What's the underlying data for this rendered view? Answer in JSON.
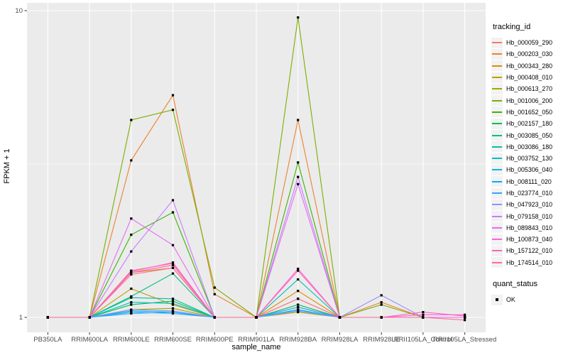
{
  "chart_data": {
    "type": "line",
    "title": "",
    "xlabel": "sample_name",
    "ylabel": "FPKM + 1",
    "yscale": "log10",
    "ylim": [
      0.89,
      10.6
    ],
    "yticks": [
      {
        "label": "1",
        "value": 1
      },
      {
        "label": "10",
        "value": 10
      }
    ],
    "minor_gridlines": [
      3.162
    ],
    "grid": "on",
    "panel_bg": "#EBEBEB",
    "gridline_color": "#FFFFFF",
    "tick_label_color": "#4D4D4D",
    "axis_title_color": "#000000",
    "point_shape": "filled-square",
    "point_color": "#000000",
    "legend_position": "right",
    "x": [
      "PB350LA",
      "RRIM600LA",
      "RRIM600LE",
      "RRIM600SE",
      "RRIM600PE",
      "RRIM901LA",
      "RRIM928BA",
      "RRIM928LA",
      "RRIM928LE",
      "RRII105LA_Control",
      "RRII105LA_Stressed"
    ],
    "series": [
      {
        "name": "Hb_000059_290",
        "color": "#F8766D",
        "values": [
          1,
          1,
          1.42,
          1.5,
          1,
          1,
          1.15,
          1,
          1,
          1,
          1
        ]
      },
      {
        "name": "Hb_000203_030",
        "color": "#EA8331",
        "values": [
          1,
          1,
          3.25,
          5.3,
          1.19,
          1,
          4.4,
          1,
          1.12,
          1,
          1
        ]
      },
      {
        "name": "Hb_000343_280",
        "color": "#D89000",
        "values": [
          1,
          1,
          1.4,
          1.45,
          1,
          1,
          1.22,
          1,
          1,
          1,
          1
        ]
      },
      {
        "name": "Hb_000408_010",
        "color": "#C09B00",
        "values": [
          1,
          1,
          1.24,
          1.1,
          1,
          1,
          1.05,
          1,
          1,
          1,
          1
        ]
      },
      {
        "name": "Hb_000613_270",
        "color": "#A3A500",
        "values": [
          1,
          1,
          1.06,
          1.07,
          1,
          1,
          1.04,
          1,
          1,
          1,
          1
        ]
      },
      {
        "name": "Hb_001006_200",
        "color": "#7CAE00",
        "values": [
          1,
          1,
          4.4,
          4.75,
          1.25,
          1,
          9.5,
          1,
          1.1,
          1,
          1
        ]
      },
      {
        "name": "Hb_001652_050",
        "color": "#39B600",
        "values": [
          1,
          1,
          1.86,
          2.2,
          1,
          1,
          3.2,
          1,
          1,
          1,
          1
        ]
      },
      {
        "name": "Hb_002157_180",
        "color": "#00BB4E",
        "values": [
          1,
          1,
          1.1,
          1.13,
          1,
          1,
          1.1,
          1,
          1,
          1,
          1
        ]
      },
      {
        "name": "Hb_003085_050",
        "color": "#00C07F",
        "values": [
          1,
          1,
          1.17,
          1.39,
          1,
          1,
          1.08,
          1,
          1,
          1,
          1
        ]
      },
      {
        "name": "Hb_003086_180",
        "color": "#00C1A7",
        "values": [
          1,
          1,
          1.16,
          1.15,
          1,
          1,
          1.33,
          1,
          1,
          1,
          1
        ]
      },
      {
        "name": "Hb_003752_130",
        "color": "#00BFC4",
        "values": [
          1,
          1,
          1.12,
          1.11,
          1,
          1,
          1.06,
          1,
          1,
          1,
          1
        ]
      },
      {
        "name": "Hb_005306_040",
        "color": "#00BAE0",
        "values": [
          1,
          1,
          1.05,
          1.04,
          1,
          1,
          1.05,
          1,
          1,
          1,
          1
        ]
      },
      {
        "name": "Hb_008111_020",
        "color": "#00B0F6",
        "values": [
          1,
          1,
          1.03,
          1.04,
          1,
          1,
          1.06,
          1,
          1,
          1,
          1
        ]
      },
      {
        "name": "Hb_023774_010",
        "color": "#35A2FF",
        "values": [
          1,
          1,
          1.04,
          1.03,
          1,
          1,
          1.08,
          1,
          1,
          1,
          1
        ]
      },
      {
        "name": "Hb_047923_010",
        "color": "#9590FF",
        "values": [
          1,
          1,
          1.06,
          1.05,
          1,
          1,
          1.05,
          1,
          1.18,
          1,
          1
        ]
      },
      {
        "name": "Hb_079158_010",
        "color": "#C77CFF",
        "values": [
          1,
          1,
          1.64,
          2.41,
          1,
          1,
          2.87,
          1,
          1,
          1,
          1
        ]
      },
      {
        "name": "Hb_089843_010",
        "color": "#E76BF3",
        "values": [
          1,
          1,
          2.1,
          1.72,
          1,
          1,
          2.72,
          1,
          1,
          1,
          1
        ]
      },
      {
        "name": "Hb_100873_040",
        "color": "#FA62DB",
        "values": [
          1,
          1,
          1.41,
          1.51,
          1,
          1,
          1.44,
          1,
          1,
          1.02,
          1.02
        ]
      },
      {
        "name": "Hb_157122_010",
        "color": "#FF62BC",
        "values": [
          1,
          1,
          1.4,
          1.48,
          1,
          1,
          1.42,
          1,
          1,
          1.04,
          1.01
        ]
      },
      {
        "name": "Hb_174514_010",
        "color": "#FF6A98",
        "values": [
          1,
          1,
          1.38,
          1.45,
          1,
          1,
          1.15,
          1,
          1,
          1,
          0.98
        ]
      }
    ],
    "legend": {
      "tracking_title": "tracking_id",
      "quant_title": "quant_status",
      "quant_items": [
        "OK"
      ]
    }
  }
}
